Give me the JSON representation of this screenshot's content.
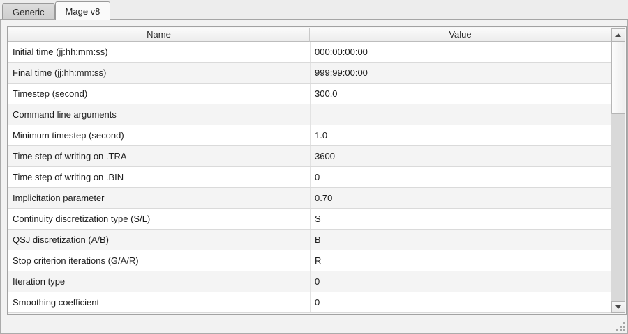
{
  "tabs": [
    {
      "label": "Generic",
      "active": false
    },
    {
      "label": "Mage v8",
      "active": true
    }
  ],
  "parameters_table": {
    "columns": [
      "Name",
      "Value"
    ],
    "rows": [
      {
        "name": "Initial time (jj:hh:mm:ss)",
        "value": "000:00:00:00"
      },
      {
        "name": "Final time (jj:hh:mm:ss)",
        "value": "999:99:00:00"
      },
      {
        "name": "Timestep (second)",
        "value": "300.0"
      },
      {
        "name": "Command line arguments",
        "value": ""
      },
      {
        "name": "Minimum timestep (second)",
        "value": "1.0"
      },
      {
        "name": "Time step of writing on .TRA",
        "value": "3600"
      },
      {
        "name": "Time step of writing on .BIN",
        "value": "0"
      },
      {
        "name": "Implicitation parameter",
        "value": "0.70"
      },
      {
        "name": "Continuity discretization type (S/L)",
        "value": "S"
      },
      {
        "name": "QSJ discretization (A/B)",
        "value": "B"
      },
      {
        "name": "Stop criterion iterations (G/A/R)",
        "value": "R"
      },
      {
        "name": "Iteration type",
        "value": "0"
      },
      {
        "name": "Smoothing coefficient",
        "value": "0"
      }
    ]
  },
  "icons": {
    "scroll_up_icon": "▲",
    "scroll_down_icon": "▼",
    "resize_grip_icon": "⋱"
  },
  "colors": {
    "window_background": "#ededed",
    "row_stripe": "#f4f4f4",
    "scrollbar_trough": "#d9d9d9"
  }
}
